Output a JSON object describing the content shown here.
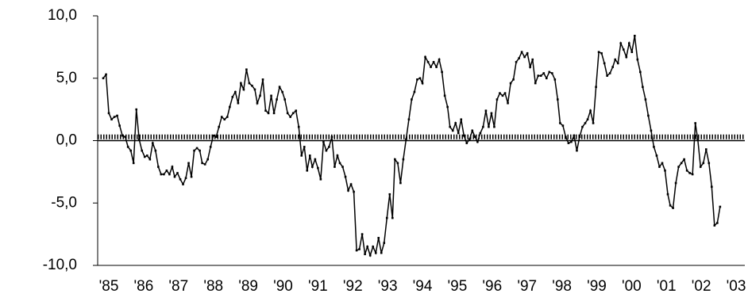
{
  "chart_data": {
    "type": "line",
    "ylim": [
      -10,
      10
    ],
    "yticks": [
      {
        "value": 10,
        "label": "10,0"
      },
      {
        "value": 5,
        "label": "5,0"
      },
      {
        "value": 0,
        "label": "0,0"
      },
      {
        "value": -5,
        "label": "-5,0"
      },
      {
        "value": -10,
        "label": "-10,0"
      }
    ],
    "xlim": [
      1984.68,
      2003.25
    ],
    "xticks": [
      {
        "value": 1985,
        "label": "'85"
      },
      {
        "value": 1986,
        "label": "'86"
      },
      {
        "value": 1987,
        "label": "'87"
      },
      {
        "value": 1988,
        "label": "'88"
      },
      {
        "value": 1989,
        "label": "'89"
      },
      {
        "value": 1990,
        "label": "'90"
      },
      {
        "value": 1991,
        "label": "'91"
      },
      {
        "value": 1992,
        "label": "'92"
      },
      {
        "value": 1993,
        "label": "'93"
      },
      {
        "value": 1994,
        "label": "'94"
      },
      {
        "value": 1995,
        "label": "'95"
      },
      {
        "value": 1996,
        "label": "'96"
      },
      {
        "value": 1997,
        "label": "'97"
      },
      {
        "value": 1998,
        "label": "'98"
      },
      {
        "value": 1999,
        "label": "'99"
      },
      {
        "value": 2000,
        "label": "'00"
      },
      {
        "value": 2001,
        "label": "'01"
      },
      {
        "value": 2002,
        "label": "'02"
      },
      {
        "value": 2003,
        "label": "'03"
      }
    ],
    "reference_line": {
      "value": 0.3,
      "color": "#000000",
      "style": "dotted"
    },
    "color": "#000000",
    "x": [
      1984.84,
      1984.92,
      1985.0,
      1985.08,
      1985.16,
      1985.24,
      1985.31,
      1985.39,
      1985.47,
      1985.55,
      1985.63,
      1985.71,
      1985.79,
      1985.87,
      1985.95,
      1986.03,
      1986.1,
      1986.18,
      1986.26,
      1986.34,
      1986.42,
      1986.5,
      1986.58,
      1986.66,
      1986.74,
      1986.82,
      1986.89,
      1986.97,
      1987.05,
      1987.13,
      1987.21,
      1987.29,
      1987.37,
      1987.45,
      1987.53,
      1987.61,
      1987.68,
      1987.76,
      1987.84,
      1987.92,
      1988.0,
      1988.08,
      1988.16,
      1988.24,
      1988.32,
      1988.4,
      1988.47,
      1988.55,
      1988.63,
      1988.71,
      1988.79,
      1988.87,
      1988.95,
      1989.03,
      1989.11,
      1989.19,
      1989.26,
      1989.34,
      1989.42,
      1989.5,
      1989.58,
      1989.66,
      1989.74,
      1989.82,
      1989.9,
      1989.98,
      1990.05,
      1990.13,
      1990.21,
      1990.29,
      1990.37,
      1990.45,
      1990.53,
      1990.61,
      1990.69,
      1990.77,
      1990.84,
      1990.92,
      1991.0,
      1991.08,
      1991.16,
      1991.24,
      1991.32,
      1991.4,
      1991.48,
      1991.56,
      1991.63,
      1991.71,
      1991.79,
      1991.87,
      1991.95,
      1992.03,
      1992.11,
      1992.19,
      1992.27,
      1992.35,
      1992.42,
      1992.5,
      1992.58,
      1992.66,
      1992.74,
      1992.82,
      1992.9,
      1992.98,
      1993.06,
      1993.14,
      1993.21,
      1993.29,
      1993.37,
      1993.45,
      1993.53,
      1993.61,
      1993.69,
      1993.77,
      1993.85,
      1993.93,
      1994.0,
      1994.08,
      1994.16,
      1994.24,
      1994.32,
      1994.4,
      1994.48,
      1994.56,
      1994.64,
      1994.72,
      1994.79,
      1994.87,
      1994.95,
      1995.03,
      1995.11,
      1995.19,
      1995.27,
      1995.35,
      1995.43,
      1995.51,
      1995.58,
      1995.66,
      1995.74,
      1995.82,
      1995.9,
      1995.98,
      1996.06,
      1996.14,
      1996.22,
      1996.3,
      1996.37,
      1996.45,
      1996.53,
      1996.61,
      1996.69,
      1996.77,
      1996.85,
      1996.93,
      1997.01,
      1997.09,
      1997.16,
      1997.24,
      1997.32,
      1997.4,
      1997.48,
      1997.56,
      1997.64,
      1997.72,
      1997.8,
      1997.88,
      1997.95,
      1998.03,
      1998.11,
      1998.19,
      1998.27,
      1998.35,
      1998.43,
      1998.51,
      1998.59,
      1998.67,
      1998.74,
      1998.82,
      1998.9,
      1998.98,
      1999.06,
      1999.14,
      1999.22,
      1999.3,
      1999.38,
      1999.46,
      1999.53,
      1999.61,
      1999.69,
      1999.77,
      1999.85,
      1999.93,
      2000.01,
      2000.09,
      2000.17,
      2000.25,
      2000.32,
      2000.4,
      2000.48,
      2000.56,
      2000.64,
      2000.72,
      2000.8,
      2000.88,
      2000.96,
      2001.04,
      2001.11,
      2001.19,
      2001.27,
      2001.35,
      2001.43,
      2001.51,
      2001.59,
      2001.67,
      2001.75,
      2001.83,
      2001.9,
      2001.98,
      2002.06,
      2002.14,
      2002.22,
      2002.3,
      2002.38,
      2002.46,
      2002.54
    ],
    "values": [
      5.0,
      5.3,
      2.2,
      1.7,
      1.9,
      2.0,
      1.2,
      0.4,
      0.3,
      -0.5,
      -0.8,
      -1.8,
      2.5,
      0.1,
      -0.8,
      -1.3,
      -1.2,
      -1.5,
      -0.2,
      -0.8,
      -2.1,
      -2.7,
      -2.7,
      -2.4,
      -2.7,
      -2.1,
      -2.9,
      -2.6,
      -3.1,
      -3.5,
      -3.0,
      -1.8,
      -2.9,
      -0.8,
      -0.6,
      -0.8,
      -1.8,
      -1.9,
      -1.5,
      -0.5,
      0.4,
      0.3,
      1.1,
      1.9,
      1.7,
      1.9,
      2.7,
      3.5,
      3.9,
      3.0,
      4.6,
      4.1,
      5.7,
      4.6,
      4.4,
      4.1,
      3.0,
      3.6,
      4.9,
      2.4,
      2.2,
      3.6,
      2.2,
      3.3,
      4.3,
      3.9,
      3.3,
      2.2,
      1.9,
      2.2,
      2.4,
      1.1,
      -1.2,
      -0.5,
      -2.4,
      -1.2,
      -2.1,
      -1.5,
      -2.2,
      -3.1,
      -0.1,
      -0.8,
      -0.5,
      0.3,
      -2.1,
      -1.2,
      -1.8,
      -2.1,
      -2.9,
      -4.0,
      -3.5,
      -4.1,
      -8.8,
      -8.7,
      -7.5,
      -9.1,
      -8.5,
      -9.2,
      -8.5,
      -9.0,
      -7.8,
      -9.0,
      -8.2,
      -6.2,
      -4.3,
      -6.2,
      -1.5,
      -1.8,
      -3.4,
      -1.5,
      0.1,
      1.7,
      3.3,
      3.9,
      4.9,
      5.0,
      4.6,
      6.7,
      6.3,
      5.9,
      6.3,
      5.9,
      6.5,
      5.5,
      3.6,
      2.7,
      1.1,
      0.8,
      1.4,
      0.6,
      1.7,
      0.4,
      -0.2,
      0.1,
      0.8,
      0.3,
      -0.1,
      0.6,
      1.1,
      2.4,
      1.1,
      2.2,
      1.1,
      3.3,
      3.8,
      3.6,
      3.8,
      3.0,
      4.6,
      4.9,
      6.3,
      6.6,
      7.1,
      6.7,
      7.0,
      5.9,
      6.5,
      4.6,
      5.2,
      5.2,
      5.4,
      5.0,
      5.5,
      5.4,
      4.9,
      3.3,
      1.4,
      1.2,
      0.3,
      -0.2,
      -0.1,
      0.4,
      -0.8,
      0.3,
      1.1,
      1.4,
      1.7,
      2.4,
      1.4,
      4.3,
      7.1,
      7.0,
      6.2,
      5.2,
      5.4,
      5.9,
      6.5,
      6.2,
      7.8,
      7.3,
      6.7,
      7.8,
      7.1,
      8.4,
      6.5,
      5.5,
      4.3,
      3.3,
      2.0,
      0.8,
      -0.5,
      -1.2,
      -2.1,
      -1.8,
      -2.4,
      -4.3,
      -5.2,
      -5.4,
      -3.4,
      -2.1,
      -1.8,
      -1.5,
      -2.4,
      -2.6,
      -2.7,
      1.4,
      0.1,
      -2.1,
      -1.8,
      -0.7,
      -1.8,
      -3.7,
      -6.8,
      -6.6,
      -5.3
    ]
  }
}
